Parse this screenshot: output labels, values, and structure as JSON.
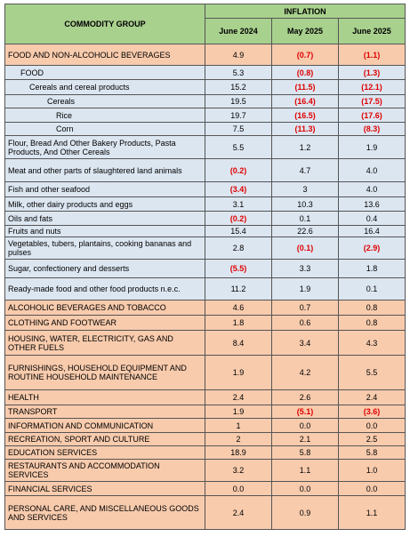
{
  "header": {
    "title": "COMMODITY GROUP",
    "inflation": "INFLATION",
    "columns": [
      "June 2024",
      "May 2025",
      "June 2025"
    ]
  },
  "rows": [
    {
      "label": "FOOD AND NON-ALCOHOLIC BEVERAGES",
      "values": [
        "4.9",
        "(0.7)",
        "(1.1)"
      ]
    },
    {
      "label": "FOOD",
      "values": [
        "5.3",
        "(0.8)",
        "(1.3)"
      ]
    },
    {
      "label": "Cereals and cereal products",
      "values": [
        "15.2",
        "(11.5)",
        "(12.1)"
      ]
    },
    {
      "label": "Cereals",
      "values": [
        "19.5",
        "(16.4)",
        "(17.5)"
      ]
    },
    {
      "label": "Rice",
      "values": [
        "19.7",
        "(16.5)",
        "(17.6)"
      ]
    },
    {
      "label": "Corn",
      "values": [
        "7.5",
        "(11.3)",
        "(8.3)"
      ]
    },
    {
      "label": "Flour, Bread And Other Bakery Products, Pasta Products, And Other Cereals",
      "values": [
        "5.5",
        "1.2",
        "1.9"
      ]
    },
    {
      "label": "Meat and other parts of slaughtered land animals",
      "values": [
        "(0.2)",
        "4.7",
        "4.0"
      ]
    },
    {
      "label": "Fish and other seafood",
      "values": [
        "(3.4)",
        "3",
        "4.0"
      ]
    },
    {
      "label": "Milk, other dairy products and eggs",
      "values": [
        "3.1",
        "10.3",
        "13.6"
      ]
    },
    {
      "label": "Oils and fats",
      "values": [
        "(0.2)",
        "0.1",
        "0.4"
      ]
    },
    {
      "label": "Fruits and nuts",
      "values": [
        "15.4",
        "22.6",
        "16.4"
      ]
    },
    {
      "label": "Vegetables, tubers, plantains, cooking bananas and pulses",
      "values": [
        "2.8",
        "(0.1)",
        "(2.9)"
      ]
    },
    {
      "label": "Sugar, confectionery and desserts",
      "values": [
        "(5.5)",
        "3.3",
        "1.8"
      ]
    },
    {
      "label": "Ready-made food and other food products n.e.c.",
      "values": [
        "11.2",
        "1.9",
        "0.1"
      ]
    },
    {
      "label": "ALCOHOLIC BEVERAGES  AND TOBACCO",
      "values": [
        "4.6",
        "0.7",
        "0.8"
      ]
    },
    {
      "label": "CLOTHING AND FOOTWEAR",
      "values": [
        "1.8",
        "0.6",
        "0.8"
      ]
    },
    {
      "label": "HOUSING, WATER, ELECTRICITY, GAS AND OTHER FUELS",
      "values": [
        "8.4",
        "3.4",
        "4.3"
      ]
    },
    {
      "label": "FURNISHINGS, HOUSEHOLD EQUIPMENT AND ROUTINE HOUSEHOLD MAINTENANCE",
      "values": [
        "1.9",
        "4.2",
        "5.5"
      ]
    },
    {
      "label": "HEALTH",
      "values": [
        "2.4",
        "2.6",
        "2.4"
      ]
    },
    {
      "label": "TRANSPORT",
      "values": [
        "1.9",
        "(5.1)",
        "(3.6)"
      ]
    },
    {
      "label": "INFORMATION AND COMMUNICATION",
      "values": [
        "1",
        "0.0",
        "0.0"
      ]
    },
    {
      "label": "RECREATION, SPORT AND CULTURE",
      "values": [
        "2",
        "2.1",
        "2.5"
      ]
    },
    {
      "label": "EDUCATION SERVICES",
      "values": [
        "18.9",
        "5.8",
        "5.8"
      ]
    },
    {
      "label": "RESTAURANTS AND ACCOMMODATION SERVICES",
      "values": [
        "3.2",
        "1.1",
        "1.0"
      ]
    },
    {
      "label": "FINANCIAL SERVICES",
      "values": [
        "0.0",
        "0.0",
        "0.0"
      ]
    },
    {
      "label": "PERSONAL CARE, AND MISCELLANEOUS GOODS AND SERVICES",
      "values": [
        "2.4",
        "0.9",
        "1.1"
      ]
    }
  ]
}
